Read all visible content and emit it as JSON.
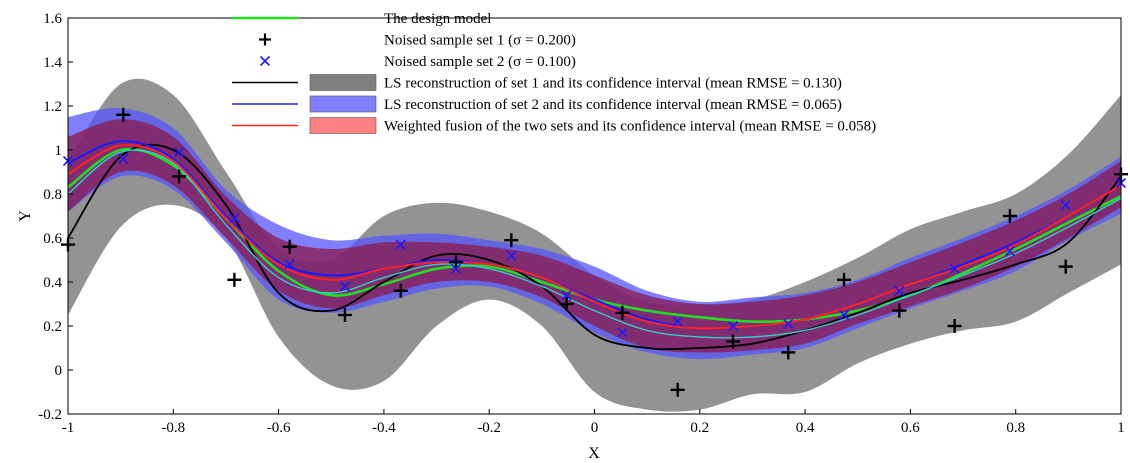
{
  "chart_data": {
    "type": "line",
    "title": "",
    "xlabel": "X",
    "ylabel": "Y",
    "xlim": [
      -1,
      1
    ],
    "ylim": [
      -0.2,
      1.6
    ],
    "grid": false,
    "legend_position": "top-center",
    "x_ticks": [
      {
        "value": -1,
        "label": "-1"
      },
      {
        "value": -0.8,
        "label": "-0.8"
      },
      {
        "value": -0.6,
        "label": "-0.6"
      },
      {
        "value": -0.4,
        "label": "-0.4"
      },
      {
        "value": -0.2,
        "label": "-0.2"
      },
      {
        "value": 0,
        "label": "0"
      },
      {
        "value": 0.2,
        "label": "0.2"
      },
      {
        "value": 0.4,
        "label": "0.4"
      },
      {
        "value": 0.6,
        "label": "0.6"
      },
      {
        "value": 0.8,
        "label": "0.8"
      },
      {
        "value": 1,
        "label": "1"
      }
    ],
    "y_ticks": [
      {
        "value": -0.2,
        "label": "-0.2"
      },
      {
        "value": 0,
        "label": "0"
      },
      {
        "value": 0.2,
        "label": "0.2"
      },
      {
        "value": 0.4,
        "label": "0.4"
      },
      {
        "value": 0.6,
        "label": "0.6"
      },
      {
        "value": 0.8,
        "label": "0.8"
      },
      {
        "value": 1,
        "label": "1"
      },
      {
        "value": 1.2,
        "label": "1.2"
      },
      {
        "value": 1.4,
        "label": "1.4"
      },
      {
        "value": 1.6,
        "label": "1.6"
      }
    ],
    "bands": [
      {
        "name": "LS reconstruction of set 1 and its confidence interval (mean RMSE = 0.130)",
        "color": "#808080",
        "opacity": 0.85,
        "x": [
          -1,
          -0.9,
          -0.8,
          -0.7,
          -0.6,
          -0.5,
          -0.4,
          -0.3,
          -0.2,
          -0.1,
          0,
          0.1,
          0.2,
          0.3,
          0.4,
          0.5,
          0.6,
          0.7,
          0.8,
          0.9,
          1
        ],
        "upper": [
          0.95,
          1.3,
          1.25,
          0.9,
          0.55,
          0.5,
          0.7,
          0.76,
          0.72,
          0.62,
          0.43,
          0.31,
          0.3,
          0.32,
          0.4,
          0.51,
          0.64,
          0.72,
          0.8,
          0.98,
          1.25
        ],
        "lower": [
          0.25,
          0.65,
          0.75,
          0.6,
          0.15,
          -0.07,
          -0.05,
          0.2,
          0.32,
          0.2,
          -0.1,
          -0.18,
          -0.18,
          -0.11,
          -0.1,
          0.03,
          0.12,
          0.18,
          0.22,
          0.35,
          0.48
        ]
      },
      {
        "name": "LS reconstruction of set 2 and its confidence interval (mean RMSE = 0.065)",
        "color": "#5555ff",
        "opacity": 0.75,
        "x": [
          -1,
          -0.9,
          -0.8,
          -0.7,
          -0.6,
          -0.5,
          -0.4,
          -0.3,
          -0.2,
          -0.1,
          0,
          0.1,
          0.2,
          0.3,
          0.4,
          0.5,
          0.6,
          0.7,
          0.8,
          0.9,
          1
        ],
        "upper": [
          1.15,
          1.19,
          1.1,
          0.82,
          0.66,
          0.59,
          0.61,
          0.62,
          0.59,
          0.55,
          0.47,
          0.36,
          0.31,
          0.33,
          0.35,
          0.41,
          0.51,
          0.6,
          0.7,
          0.82,
          0.97
        ],
        "lower": [
          0.72,
          0.88,
          0.82,
          0.58,
          0.32,
          0.26,
          0.31,
          0.37,
          0.38,
          0.3,
          0.17,
          0.08,
          0.05,
          0.07,
          0.1,
          0.19,
          0.28,
          0.36,
          0.45,
          0.59,
          0.71
        ]
      },
      {
        "name": "Weighted fusion of the two sets and its confidence interval (mean RMSE = 0.058)",
        "color": "#8b1a4a",
        "opacity": 0.75,
        "x": [
          -1,
          -0.9,
          -0.8,
          -0.7,
          -0.6,
          -0.5,
          -0.4,
          -0.3,
          -0.2,
          -0.1,
          0,
          0.1,
          0.2,
          0.3,
          0.4,
          0.5,
          0.6,
          0.7,
          0.8,
          0.9,
          1
        ],
        "upper": [
          1.06,
          1.14,
          1.06,
          0.79,
          0.6,
          0.55,
          0.58,
          0.58,
          0.56,
          0.52,
          0.43,
          0.34,
          0.3,
          0.31,
          0.34,
          0.4,
          0.49,
          0.58,
          0.68,
          0.8,
          0.95
        ],
        "lower": [
          0.72,
          0.9,
          0.84,
          0.6,
          0.36,
          0.28,
          0.34,
          0.4,
          0.4,
          0.33,
          0.2,
          0.1,
          0.08,
          0.09,
          0.12,
          0.21,
          0.29,
          0.37,
          0.47,
          0.6,
          0.74
        ]
      }
    ],
    "series": [
      {
        "name": "The design model",
        "color": "#22dd22",
        "width": 2.6,
        "x": [
          -1,
          -0.9,
          -0.8,
          -0.7,
          -0.6,
          -0.5,
          -0.4,
          -0.3,
          -0.2,
          -0.1,
          0,
          0.1,
          0.2,
          0.3,
          0.4,
          0.5,
          0.6,
          0.7,
          0.8,
          0.9,
          1
        ],
        "y": [
          0.83,
          1.0,
          0.93,
          0.69,
          0.45,
          0.34,
          0.39,
          0.46,
          0.47,
          0.4,
          0.32,
          0.27,
          0.24,
          0.22,
          0.23,
          0.27,
          0.34,
          0.44,
          0.55,
          0.67,
          0.79
        ]
      },
      {
        "name": "LS reconstruction of set 1",
        "color": "#000000",
        "width": 1.8,
        "x": [
          -1,
          -0.9,
          -0.8,
          -0.7,
          -0.6,
          -0.5,
          -0.4,
          -0.3,
          -0.2,
          -0.1,
          0,
          0.1,
          0.2,
          0.3,
          0.4,
          0.5,
          0.6,
          0.7,
          0.8,
          0.9,
          1
        ],
        "y": [
          0.6,
          0.97,
          1.0,
          0.75,
          0.35,
          0.27,
          0.4,
          0.52,
          0.5,
          0.38,
          0.16,
          0.1,
          0.1,
          0.12,
          0.18,
          0.26,
          0.35,
          0.41,
          0.48,
          0.58,
          0.88
        ]
      },
      {
        "name": "LS reconstruction of set 2",
        "color": "#1a1aff",
        "width": 2.0,
        "x": [
          -1,
          -0.9,
          -0.8,
          -0.7,
          -0.6,
          -0.5,
          -0.4,
          -0.3,
          -0.2,
          -0.1,
          0,
          0.1,
          0.2,
          0.3,
          0.4,
          0.5,
          0.6,
          0.7,
          0.8,
          0.9,
          1
        ],
        "y": [
          0.94,
          1.04,
          0.96,
          0.7,
          0.49,
          0.43,
          0.46,
          0.5,
          0.48,
          0.42,
          0.32,
          0.23,
          0.19,
          0.2,
          0.23,
          0.3,
          0.39,
          0.48,
          0.58,
          0.7,
          0.84
        ]
      },
      {
        "name": "Weighted fusion of the two sets",
        "color": "#ff2222",
        "width": 2.0,
        "x": [
          -1,
          -0.9,
          -0.8,
          -0.7,
          -0.6,
          -0.5,
          -0.4,
          -0.3,
          -0.2,
          -0.1,
          0,
          0.1,
          0.2,
          0.3,
          0.4,
          0.5,
          0.6,
          0.7,
          0.8,
          0.9,
          1
        ],
        "y": [
          0.89,
          1.02,
          0.95,
          0.69,
          0.48,
          0.41,
          0.46,
          0.49,
          0.48,
          0.42,
          0.31,
          0.22,
          0.19,
          0.2,
          0.23,
          0.3,
          0.39,
          0.47,
          0.57,
          0.7,
          0.84
        ]
      },
      {
        "name": "",
        "color": "#33cccc",
        "width": 1.4,
        "x": [
          -1,
          -0.9,
          -0.8,
          -0.7,
          -0.6,
          -0.5,
          -0.4,
          -0.3,
          -0.2,
          -0.1,
          0,
          0.1,
          0.2,
          0.3,
          0.4,
          0.5,
          0.6,
          0.7,
          0.8,
          0.9,
          1
        ],
        "y": [
          0.8,
          0.99,
          0.94,
          0.66,
          0.42,
          0.35,
          0.42,
          0.48,
          0.46,
          0.38,
          0.27,
          0.18,
          0.15,
          0.15,
          0.18,
          0.25,
          0.34,
          0.43,
          0.53,
          0.65,
          0.78
        ]
      }
    ],
    "scatter": [
      {
        "name": "Noised sample set 1 (σ = 0.200)",
        "marker": "plus",
        "color": "#000000",
        "x": [
          -1,
          -0.895,
          -0.789,
          -0.684,
          -0.579,
          -0.474,
          -0.368,
          -0.263,
          -0.158,
          -0.053,
          0.053,
          0.158,
          0.263,
          0.368,
          0.474,
          0.579,
          0.684,
          0.789,
          0.895,
          1
        ],
        "y": [
          0.57,
          1.16,
          0.88,
          0.41,
          0.56,
          0.25,
          0.36,
          0.49,
          0.59,
          0.3,
          0.26,
          -0.09,
          0.13,
          0.08,
          0.41,
          0.27,
          0.2,
          0.7,
          0.47,
          0.89
        ]
      },
      {
        "name": "Noised sample set 2 (σ = 0.100)",
        "marker": "x",
        "color": "#1a1aff",
        "x": [
          -1,
          -0.895,
          -0.789,
          -0.684,
          -0.579,
          -0.474,
          -0.368,
          -0.263,
          -0.158,
          -0.053,
          0.053,
          0.158,
          0.263,
          0.368,
          0.474,
          0.579,
          0.684,
          0.789,
          0.895,
          1
        ],
        "y": [
          0.95,
          0.96,
          0.99,
          0.69,
          0.48,
          0.38,
          0.57,
          0.46,
          0.52,
          0.34,
          0.17,
          0.22,
          0.2,
          0.21,
          0.25,
          0.36,
          0.46,
          0.54,
          0.75,
          0.85
        ]
      }
    ],
    "legend": [
      {
        "kind": "line",
        "color": "#22dd22",
        "label": "The design model"
      },
      {
        "kind": "plus",
        "color": "#000000",
        "label": "Noised sample set 1 (σ = 0.200)"
      },
      {
        "kind": "x",
        "color": "#1a1aff",
        "label": "Noised sample set 2 (σ = 0.100)"
      },
      {
        "kind": "band",
        "color": "#000000",
        "fill": "#808080",
        "label": "LS reconstruction of set 1 and its confidence interval (mean RMSE = 0.130)"
      },
      {
        "kind": "band",
        "color": "#1a1aff",
        "fill": "#8080ff",
        "label": "LS reconstruction of set 2 and its confidence interval (mean RMSE = 0.065)"
      },
      {
        "kind": "band",
        "color": "#ff2222",
        "fill": "#ff8080",
        "label": "Weighted fusion of the two sets and its confidence interval (mean RMSE = 0.058)"
      }
    ]
  }
}
